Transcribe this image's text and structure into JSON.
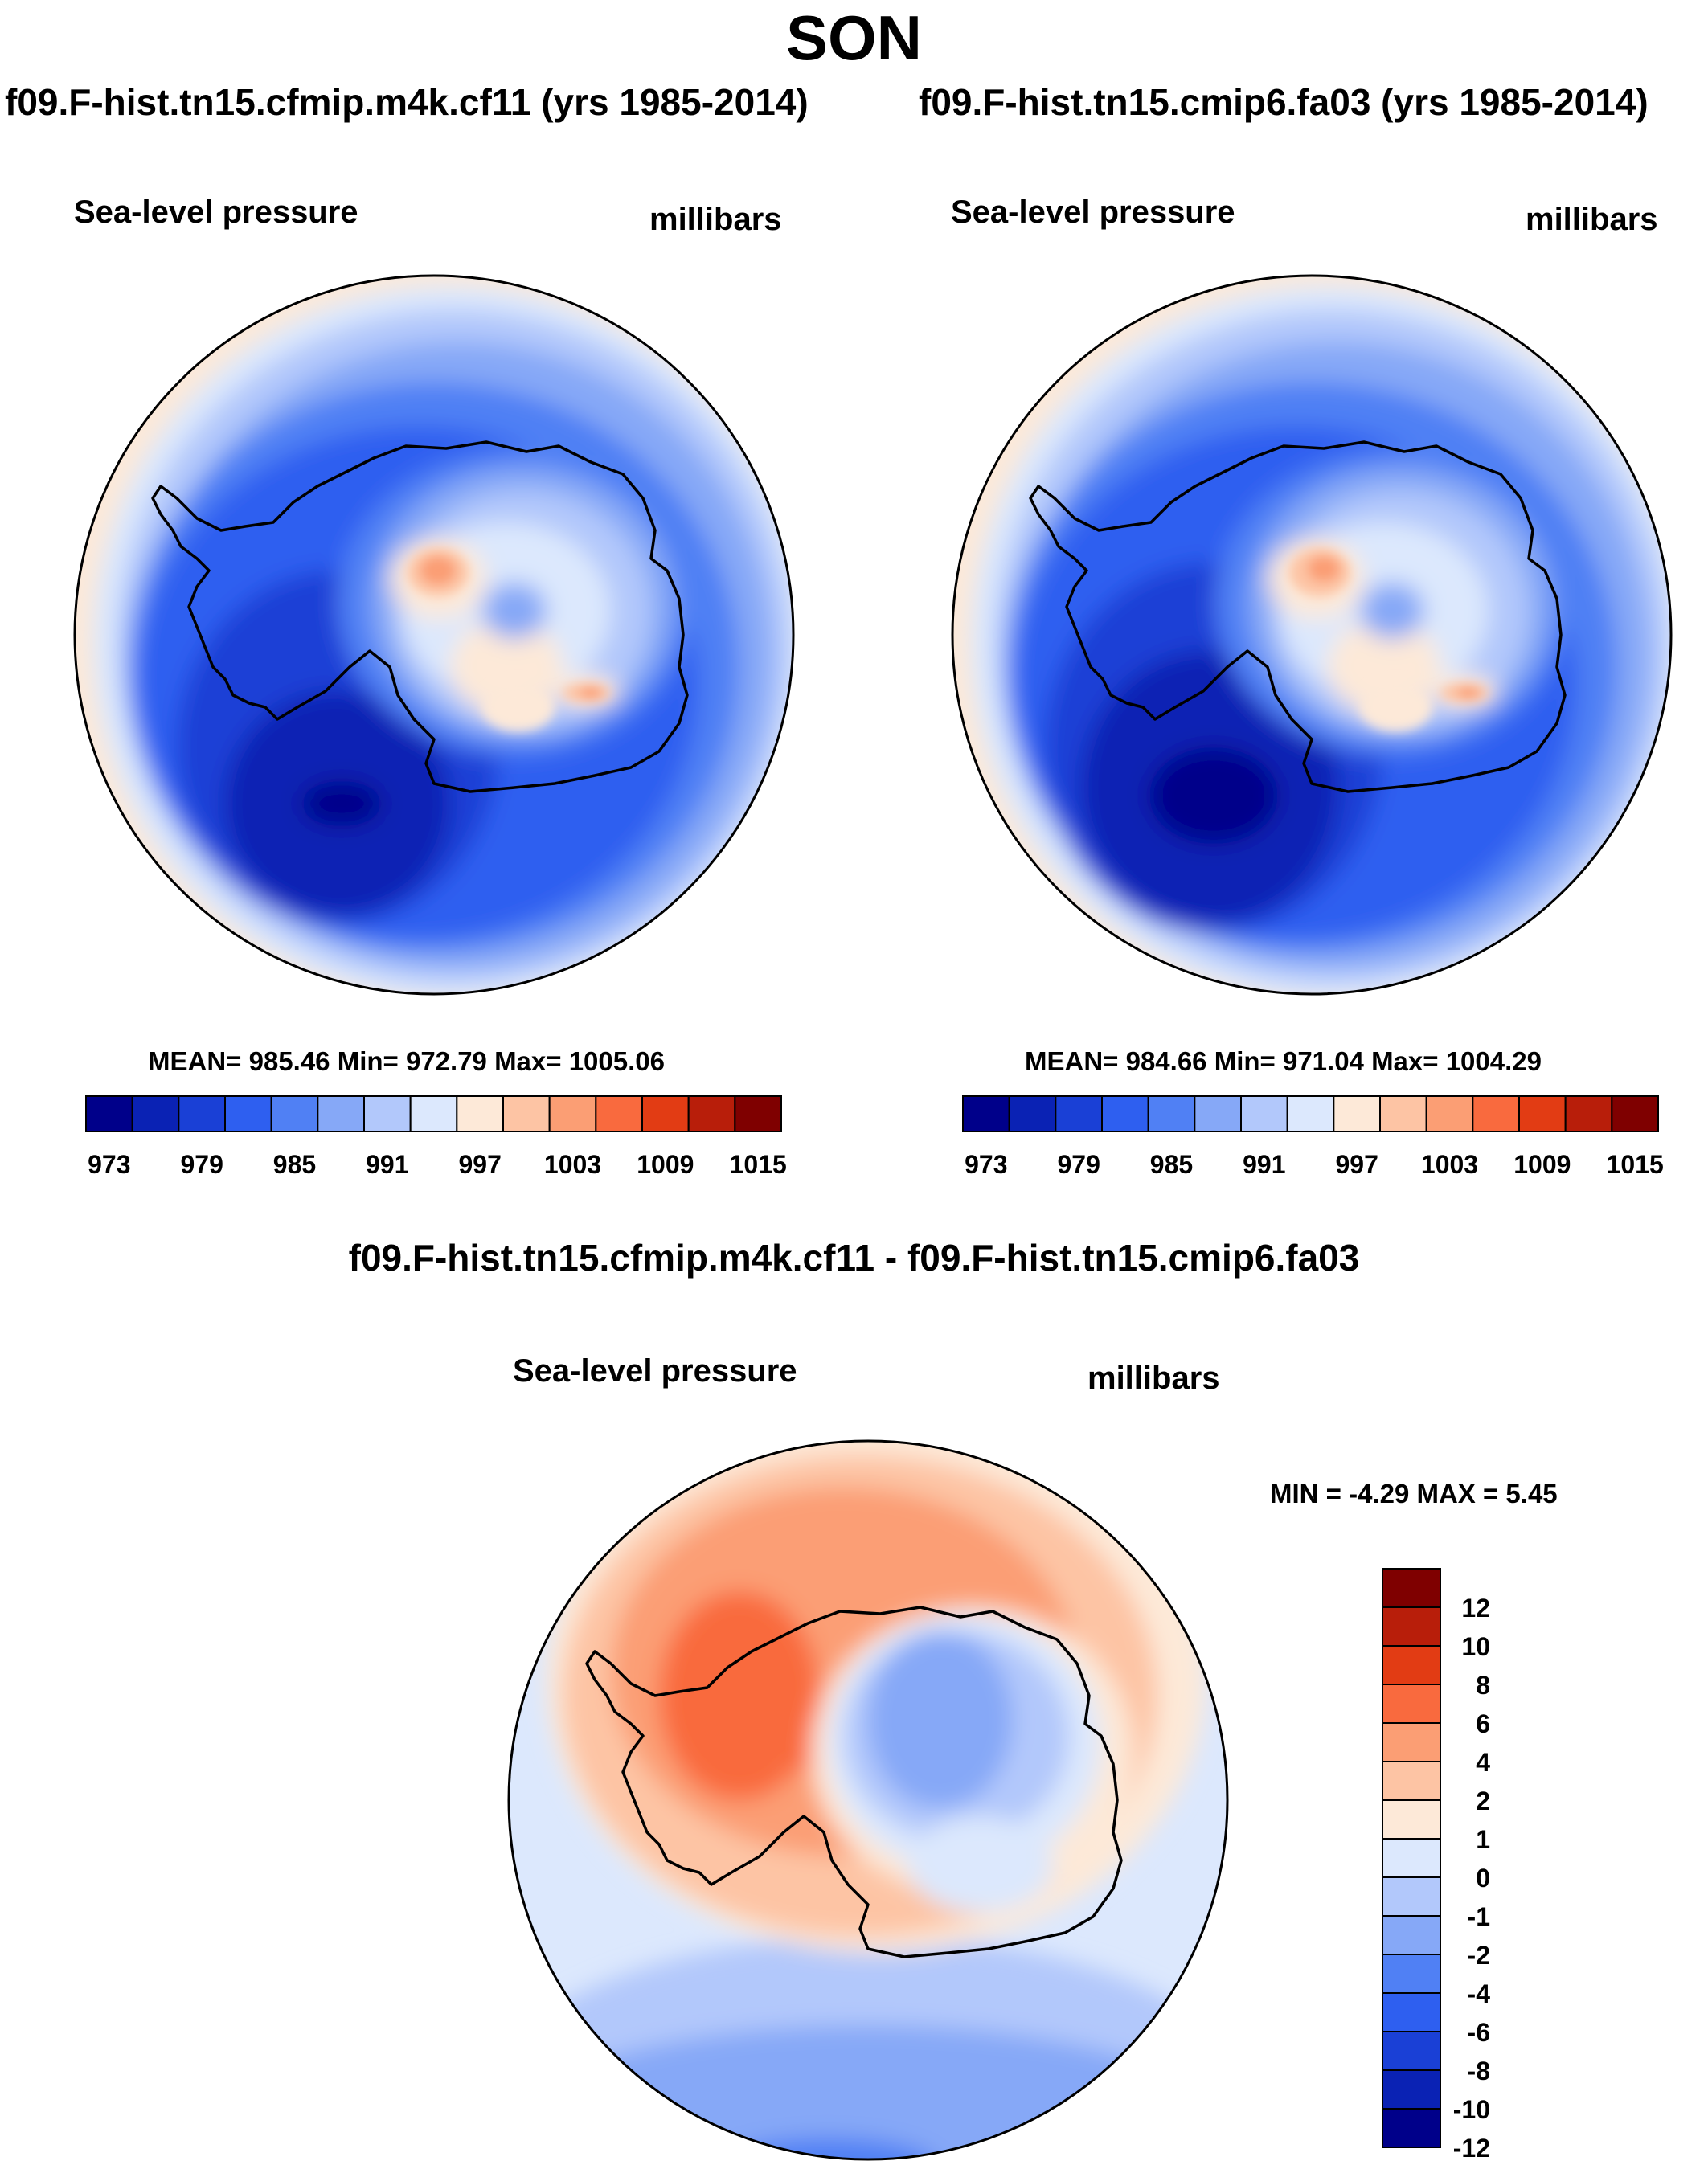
{
  "season": "SON",
  "top_panels": [
    {
      "case_title": "f09.F-hist.tn15.cfmip.m4k.cf11 (yrs 1985-2014)",
      "variable": "Sea-level pressure",
      "units": "millibars",
      "stats": "MEAN= 985.46  Min= 972.79  Max= 1005.06"
    },
    {
      "case_title": "f09.F-hist.tn15.cmip6.fa03 (yrs 1985-2014)",
      "variable": "Sea-level pressure",
      "units": "millibars",
      "stats": "MEAN= 984.66  Min= 971.04  Max= 1004.29"
    }
  ],
  "diff_panel": {
    "title": "f09.F-hist.tn15.cfmip.m4k.cf11 - f09.F-hist.tn15.cmip6.fa03",
    "variable": "Sea-level pressure",
    "units": "millibars",
    "minmax": "MIN =  -4.29 MAX =   5.45"
  },
  "chart_data": [
    {
      "type": "heatmap",
      "projection": "south-polar-stereographic",
      "title": "f09.F-hist.tn15.cfmip.m4k.cf11 (yrs 1985-2014)",
      "variable": "Sea-level pressure",
      "units": "millibars",
      "mean": 985.46,
      "min": 972.79,
      "max": 1005.06,
      "colorbar_tick_labels": [
        "973",
        "979",
        "985",
        "991",
        "997",
        "1003",
        "1009",
        "1015"
      ],
      "colorbar_colors": [
        "#00008a",
        "#0a22b4",
        "#1a40d6",
        "#2e5ff0",
        "#5080f4",
        "#86a8f7",
        "#b2c8fb",
        "#dce8fd",
        "#fde9d8",
        "#fdc4a4",
        "#fb9e74",
        "#f96a3e",
        "#e23c14",
        "#b81e0a",
        "#7f0000"
      ]
    },
    {
      "type": "heatmap",
      "projection": "south-polar-stereographic",
      "title": "f09.F-hist.tn15.cmip6.fa03 (yrs 1985-2014)",
      "variable": "Sea-level pressure",
      "units": "millibars",
      "mean": 984.66,
      "min": 971.04,
      "max": 1004.29,
      "colorbar_tick_labels": [
        "973",
        "979",
        "985",
        "991",
        "997",
        "1003",
        "1009",
        "1015"
      ],
      "colorbar_colors": [
        "#00008a",
        "#0a22b4",
        "#1a40d6",
        "#2e5ff0",
        "#5080f4",
        "#86a8f7",
        "#b2c8fb",
        "#dce8fd",
        "#fde9d8",
        "#fdc4a4",
        "#fb9e74",
        "#f96a3e",
        "#e23c14",
        "#b81e0a",
        "#7f0000"
      ]
    },
    {
      "type": "heatmap",
      "projection": "south-polar-stereographic",
      "title": "f09.F-hist.tn15.cfmip.m4k.cf11 - f09.F-hist.tn15.cmip6.fa03",
      "variable": "Sea-level pressure",
      "units": "millibars",
      "min": -4.29,
      "max": 5.45,
      "colorbar_tick_labels": [
        "12",
        "10",
        "8",
        "6",
        "4",
        "2",
        "1",
        "0",
        "-1",
        "-2",
        "-4",
        "-6",
        "-8",
        "-10",
        "-12"
      ],
      "colorbar_colors": [
        "#7f0000",
        "#b81e0a",
        "#e23c14",
        "#f96a3e",
        "#fb9e74",
        "#fdc4a4",
        "#fde9d8",
        "#dce8fd",
        "#b2c8fb",
        "#86a8f7",
        "#5080f4",
        "#2e5ff0",
        "#1a40d6",
        "#0a22b4",
        "#00008a"
      ]
    }
  ]
}
